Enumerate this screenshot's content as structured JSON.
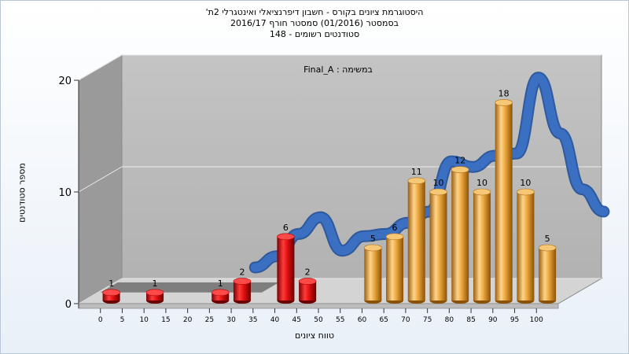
{
  "chart_data": {
    "type": "bar",
    "title_lines": [
      "היסטוגרמת ציונים בקורס - חשבון דיפרנציאלי ואינטגרלי 2ת'",
      "בסמסטר  (01/2016)  סמסטר חורף 2016/17",
      "סטודנטים רשומים - 148"
    ],
    "annotation": "במשימה : Final_A",
    "xlabel": "טווח ציונים",
    "ylabel": "מספר סטודנטים",
    "x_ticks": [
      0,
      5,
      10,
      15,
      20,
      25,
      30,
      35,
      40,
      45,
      50,
      55,
      60,
      65,
      70,
      75,
      80,
      85,
      90,
      95,
      100
    ],
    "y_ticks": [
      0,
      10,
      20
    ],
    "ylim": [
      0,
      20
    ],
    "xlim": [
      -5,
      105
    ],
    "grid": true,
    "bars": [
      {
        "x": 2.5,
        "value": 1,
        "color": "red"
      },
      {
        "x": 12.5,
        "value": 1,
        "color": "red"
      },
      {
        "x": 27.5,
        "value": 1,
        "color": "red"
      },
      {
        "x": 32.5,
        "value": 2,
        "color": "red"
      },
      {
        "x": 42.5,
        "value": 6,
        "color": "red"
      },
      {
        "x": 47.5,
        "value": 2,
        "color": "red"
      },
      {
        "x": 62.5,
        "value": 5,
        "color": "orange"
      },
      {
        "x": 67.5,
        "value": 6,
        "color": "orange"
      },
      {
        "x": 72.5,
        "value": 11,
        "color": "orange"
      },
      {
        "x": 77.5,
        "value": 10,
        "color": "orange"
      },
      {
        "x": 82.5,
        "value": 12,
        "color": "orange"
      },
      {
        "x": 87.5,
        "value": 10,
        "color": "orange"
      },
      {
        "x": 92.5,
        "value": 18,
        "color": "orange"
      },
      {
        "x": 97.5,
        "value": 10,
        "color": "orange"
      },
      {
        "x": 102.5,
        "value": 5,
        "color": "orange"
      }
    ],
    "curve": [
      {
        "x": 30,
        "y": 2
      },
      {
        "x": 35,
        "y": 3
      },
      {
        "x": 40,
        "y": 5
      },
      {
        "x": 45,
        "y": 6.5
      },
      {
        "x": 50,
        "y": 3.5
      },
      {
        "x": 55,
        "y": 4.8
      },
      {
        "x": 60,
        "y": 5
      },
      {
        "x": 65,
        "y": 6
      },
      {
        "x": 70,
        "y": 7
      },
      {
        "x": 75,
        "y": 11.5
      },
      {
        "x": 80,
        "y": 11
      },
      {
        "x": 85,
        "y": 12
      },
      {
        "x": 90,
        "y": 12.2
      },
      {
        "x": 95,
        "y": 19
      },
      {
        "x": 100,
        "y": 14
      },
      {
        "x": 105,
        "y": 9
      },
      {
        "x": 110,
        "y": 7
      }
    ],
    "colors": {
      "red": "#dd1111",
      "orange": "#eaa53a",
      "curve": "#3a6fc2",
      "wall_back": "#bebebe",
      "wall_side": "#9a9a9a",
      "floor": "#d4d4d4"
    }
  }
}
